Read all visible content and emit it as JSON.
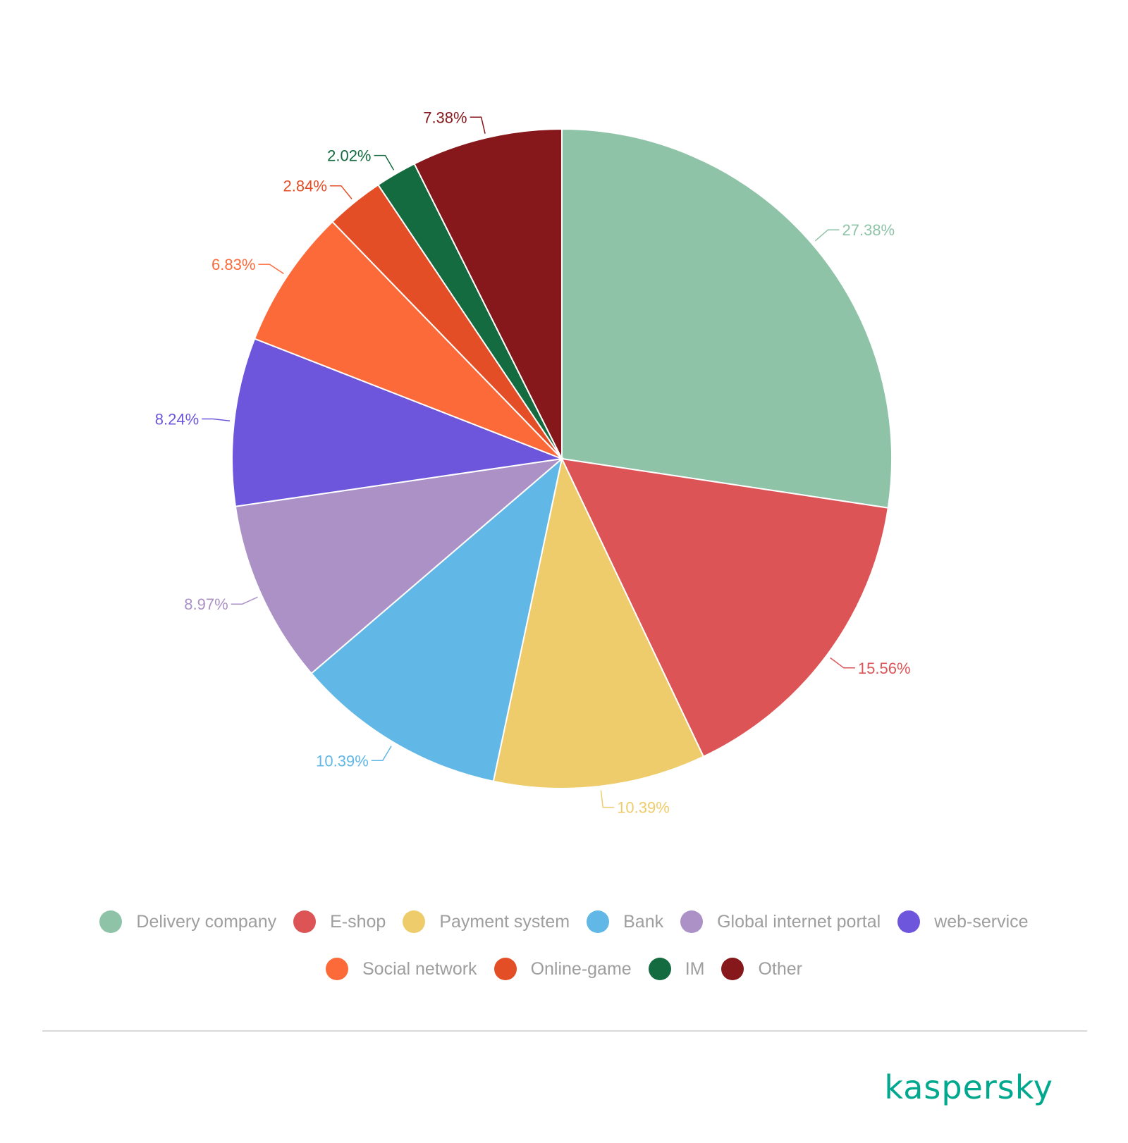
{
  "chart_data": {
    "type": "pie",
    "start_angle_deg": 0,
    "direction": "clockwise",
    "slices": [
      {
        "label": "Delivery company",
        "value": 27.38,
        "value_label": "27.38%",
        "color": "#8fc3a7"
      },
      {
        "label": "E-shop",
        "value": 15.56,
        "value_label": "15.56%",
        "color": "#dd5457"
      },
      {
        "label": "Payment system",
        "value": 10.39,
        "value_label": "10.39%",
        "color": "#efcc6b"
      },
      {
        "label": "Bank",
        "value": 10.39,
        "value_label": "10.39%",
        "color": "#61b7e5"
      },
      {
        "label": "Global internet portal",
        "value": 8.97,
        "value_label": "8.97%",
        "color": "#ab91c6"
      },
      {
        "label": "web-service",
        "value": 8.24,
        "value_label": "8.24%",
        "color": "#6e56dc"
      },
      {
        "label": "Social network",
        "value": 6.83,
        "value_label": "6.83%",
        "color": "#fd6a3a"
      },
      {
        "label": "Online-game",
        "value": 2.84,
        "value_label": "2.84%",
        "color": "#e44e27"
      },
      {
        "label": "IM",
        "value": 2.02,
        "value_label": "2.02%",
        "color": "#146b3f"
      },
      {
        "label": "Other",
        "value": 7.38,
        "value_label": "7.38%",
        "color": "#86171a"
      }
    ],
    "legend_position": "bottom",
    "title": "",
    "xlabel": "",
    "ylabel": ""
  },
  "brand": {
    "logo_text": "kaspersky",
    "logo_color": "#00a88e"
  },
  "legend_text_color": "#9e9e9e"
}
